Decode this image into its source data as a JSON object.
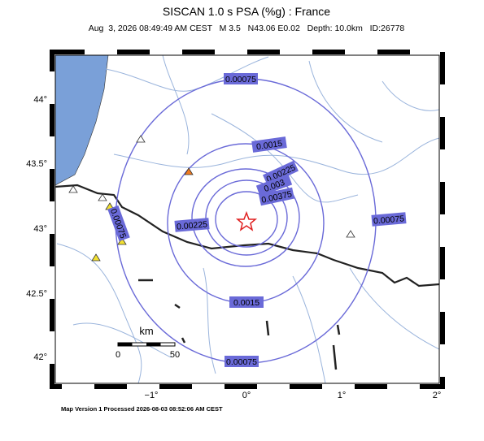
{
  "header": {
    "title": "SISCAN 1.0 s PSA (%g) : France",
    "subtitle": "Aug  3, 2026 08:49:49 AM CEST   M 3.5   N43.06 E0.02   Depth: 10.0km   ID:26778"
  },
  "map": {
    "lat_labels": [
      "44°",
      "43.5°",
      "43°",
      "42.5°",
      "42°"
    ],
    "lon_labels": [
      "−1°",
      "0°",
      "1°",
      "2°"
    ],
    "contour_labels": [
      "0.00075",
      "0.0015",
      "0.00225",
      "0.003",
      "0.00375",
      "0.00225",
      "0.00075",
      "0.00075",
      "0.0015",
      "0.00075"
    ],
    "scale_bar": {
      "unit": "km",
      "start": 0,
      "end": 50
    }
  },
  "footer": "Map Version 1 Processed 2026-08-03 08:52:06 AM CEST"
}
